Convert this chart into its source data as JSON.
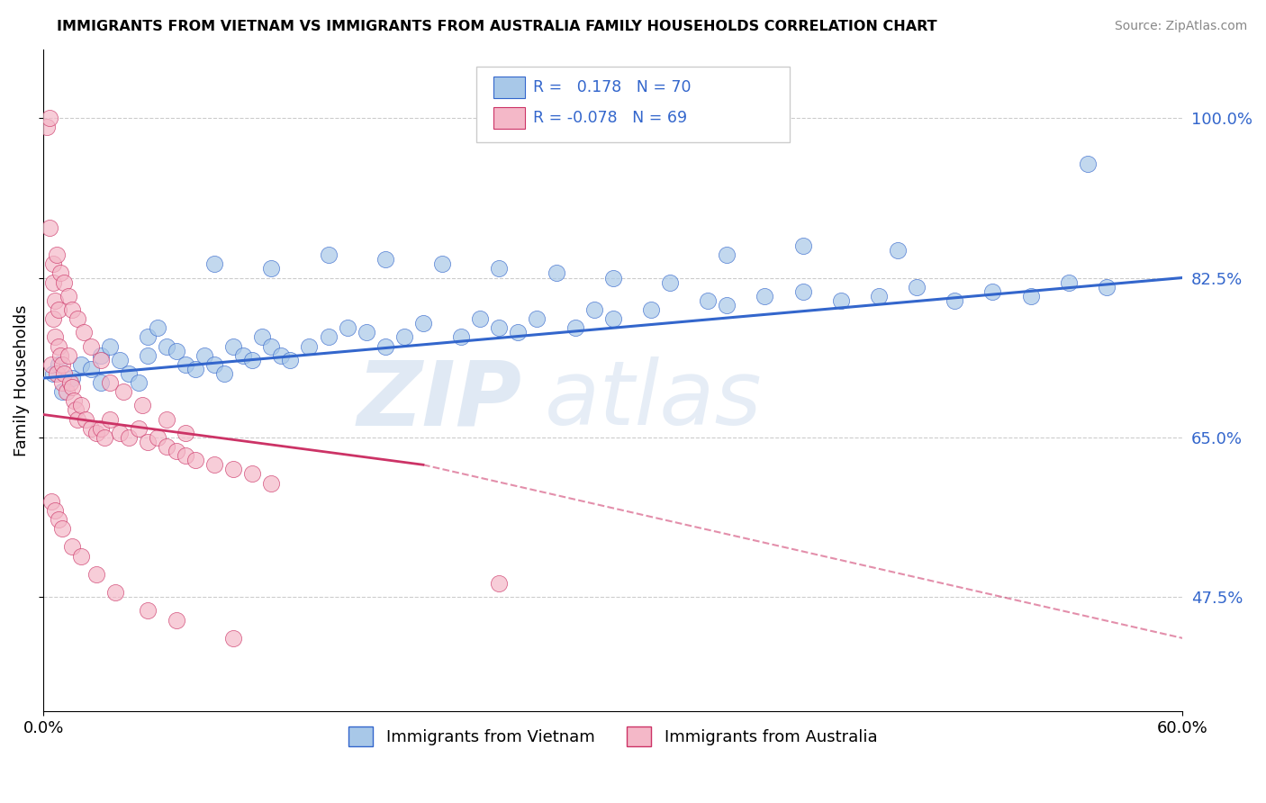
{
  "title": "IMMIGRANTS FROM VIETNAM VS IMMIGRANTS FROM AUSTRALIA FAMILY HOUSEHOLDS CORRELATION CHART",
  "source": "Source: ZipAtlas.com",
  "ylabel": "Family Households",
  "xlim": [
    0.0,
    60.0
  ],
  "ylim": [
    35.0,
    107.5
  ],
  "ytick_vals": [
    47.5,
    65.0,
    82.5,
    100.0
  ],
  "xtick_vals": [
    0.0,
    60.0
  ],
  "r_blue": 0.178,
  "n_blue": 70,
  "r_pink": -0.078,
  "n_pink": 69,
  "blue_color": "#A8C8E8",
  "pink_color": "#F4B8C8",
  "trend_blue_color": "#3366CC",
  "trend_pink_color": "#CC3366",
  "blue_trend_x0": 0.0,
  "blue_trend_y0": 71.5,
  "blue_trend_x1": 60.0,
  "blue_trend_y1": 82.5,
  "pink_solid_x0": 0.0,
  "pink_solid_y0": 67.5,
  "pink_solid_x1": 20.0,
  "pink_solid_y1": 62.0,
  "pink_dash_x0": 20.0,
  "pink_dash_y0": 62.0,
  "pink_dash_x1": 60.0,
  "pink_dash_y1": 43.0,
  "blue_scatter_x": [
    0.5,
    0.8,
    1.0,
    1.5,
    2.0,
    2.5,
    3.0,
    3.0,
    3.5,
    4.0,
    4.5,
    5.0,
    5.5,
    5.5,
    6.0,
    6.5,
    7.0,
    7.5,
    8.0,
    8.5,
    9.0,
    9.5,
    10.0,
    10.5,
    11.0,
    11.5,
    12.0,
    12.5,
    13.0,
    14.0,
    15.0,
    16.0,
    17.0,
    18.0,
    19.0,
    20.0,
    22.0,
    23.0,
    24.0,
    25.0,
    26.0,
    28.0,
    29.0,
    30.0,
    32.0,
    35.0,
    36.0,
    38.0,
    40.0,
    42.0,
    44.0,
    46.0,
    48.0,
    50.0,
    52.0,
    54.0,
    56.0,
    9.0,
    12.0,
    15.0,
    18.0,
    21.0,
    24.0,
    27.0,
    30.0,
    33.0,
    36.0,
    40.0,
    45.0,
    55.0
  ],
  "blue_scatter_y": [
    72.0,
    73.0,
    70.0,
    71.5,
    73.0,
    72.5,
    71.0,
    74.0,
    75.0,
    73.5,
    72.0,
    71.0,
    74.0,
    76.0,
    77.0,
    75.0,
    74.5,
    73.0,
    72.5,
    74.0,
    73.0,
    72.0,
    75.0,
    74.0,
    73.5,
    76.0,
    75.0,
    74.0,
    73.5,
    75.0,
    76.0,
    77.0,
    76.5,
    75.0,
    76.0,
    77.5,
    76.0,
    78.0,
    77.0,
    76.5,
    78.0,
    77.0,
    79.0,
    78.0,
    79.0,
    80.0,
    79.5,
    80.5,
    81.0,
    80.0,
    80.5,
    81.5,
    80.0,
    81.0,
    80.5,
    82.0,
    81.5,
    84.0,
    83.5,
    85.0,
    84.5,
    84.0,
    83.5,
    83.0,
    82.5,
    82.0,
    85.0,
    86.0,
    85.5,
    95.0
  ],
  "pink_scatter_x": [
    0.2,
    0.3,
    0.4,
    0.5,
    0.5,
    0.6,
    0.6,
    0.7,
    0.8,
    0.8,
    0.9,
    1.0,
    1.0,
    1.1,
    1.2,
    1.3,
    1.4,
    1.5,
    1.6,
    1.7,
    1.8,
    2.0,
    2.2,
    2.5,
    2.8,
    3.0,
    3.2,
    3.5,
    4.0,
    4.5,
    5.0,
    5.5,
    6.0,
    6.5,
    7.0,
    7.5,
    8.0,
    9.0,
    10.0,
    11.0,
    12.0,
    0.3,
    0.5,
    0.7,
    0.9,
    1.1,
    1.3,
    1.5,
    1.8,
    2.1,
    2.5,
    3.0,
    3.5,
    4.2,
    5.2,
    6.5,
    7.5,
    0.4,
    0.6,
    0.8,
    1.0,
    1.5,
    2.0,
    2.8,
    3.8,
    5.5,
    7.0,
    10.0,
    24.0
  ],
  "pink_scatter_y": [
    99.0,
    100.0,
    73.0,
    82.0,
    78.0,
    76.0,
    80.0,
    72.0,
    79.0,
    75.0,
    74.0,
    73.0,
    71.0,
    72.0,
    70.0,
    74.0,
    71.0,
    70.5,
    69.0,
    68.0,
    67.0,
    68.5,
    67.0,
    66.0,
    65.5,
    66.0,
    65.0,
    67.0,
    65.5,
    65.0,
    66.0,
    64.5,
    65.0,
    64.0,
    63.5,
    63.0,
    62.5,
    62.0,
    61.5,
    61.0,
    60.0,
    88.0,
    84.0,
    85.0,
    83.0,
    82.0,
    80.5,
    79.0,
    78.0,
    76.5,
    75.0,
    73.5,
    71.0,
    70.0,
    68.5,
    67.0,
    65.5,
    58.0,
    57.0,
    56.0,
    55.0,
    53.0,
    52.0,
    50.0,
    48.0,
    46.0,
    45.0,
    43.0,
    49.0
  ]
}
